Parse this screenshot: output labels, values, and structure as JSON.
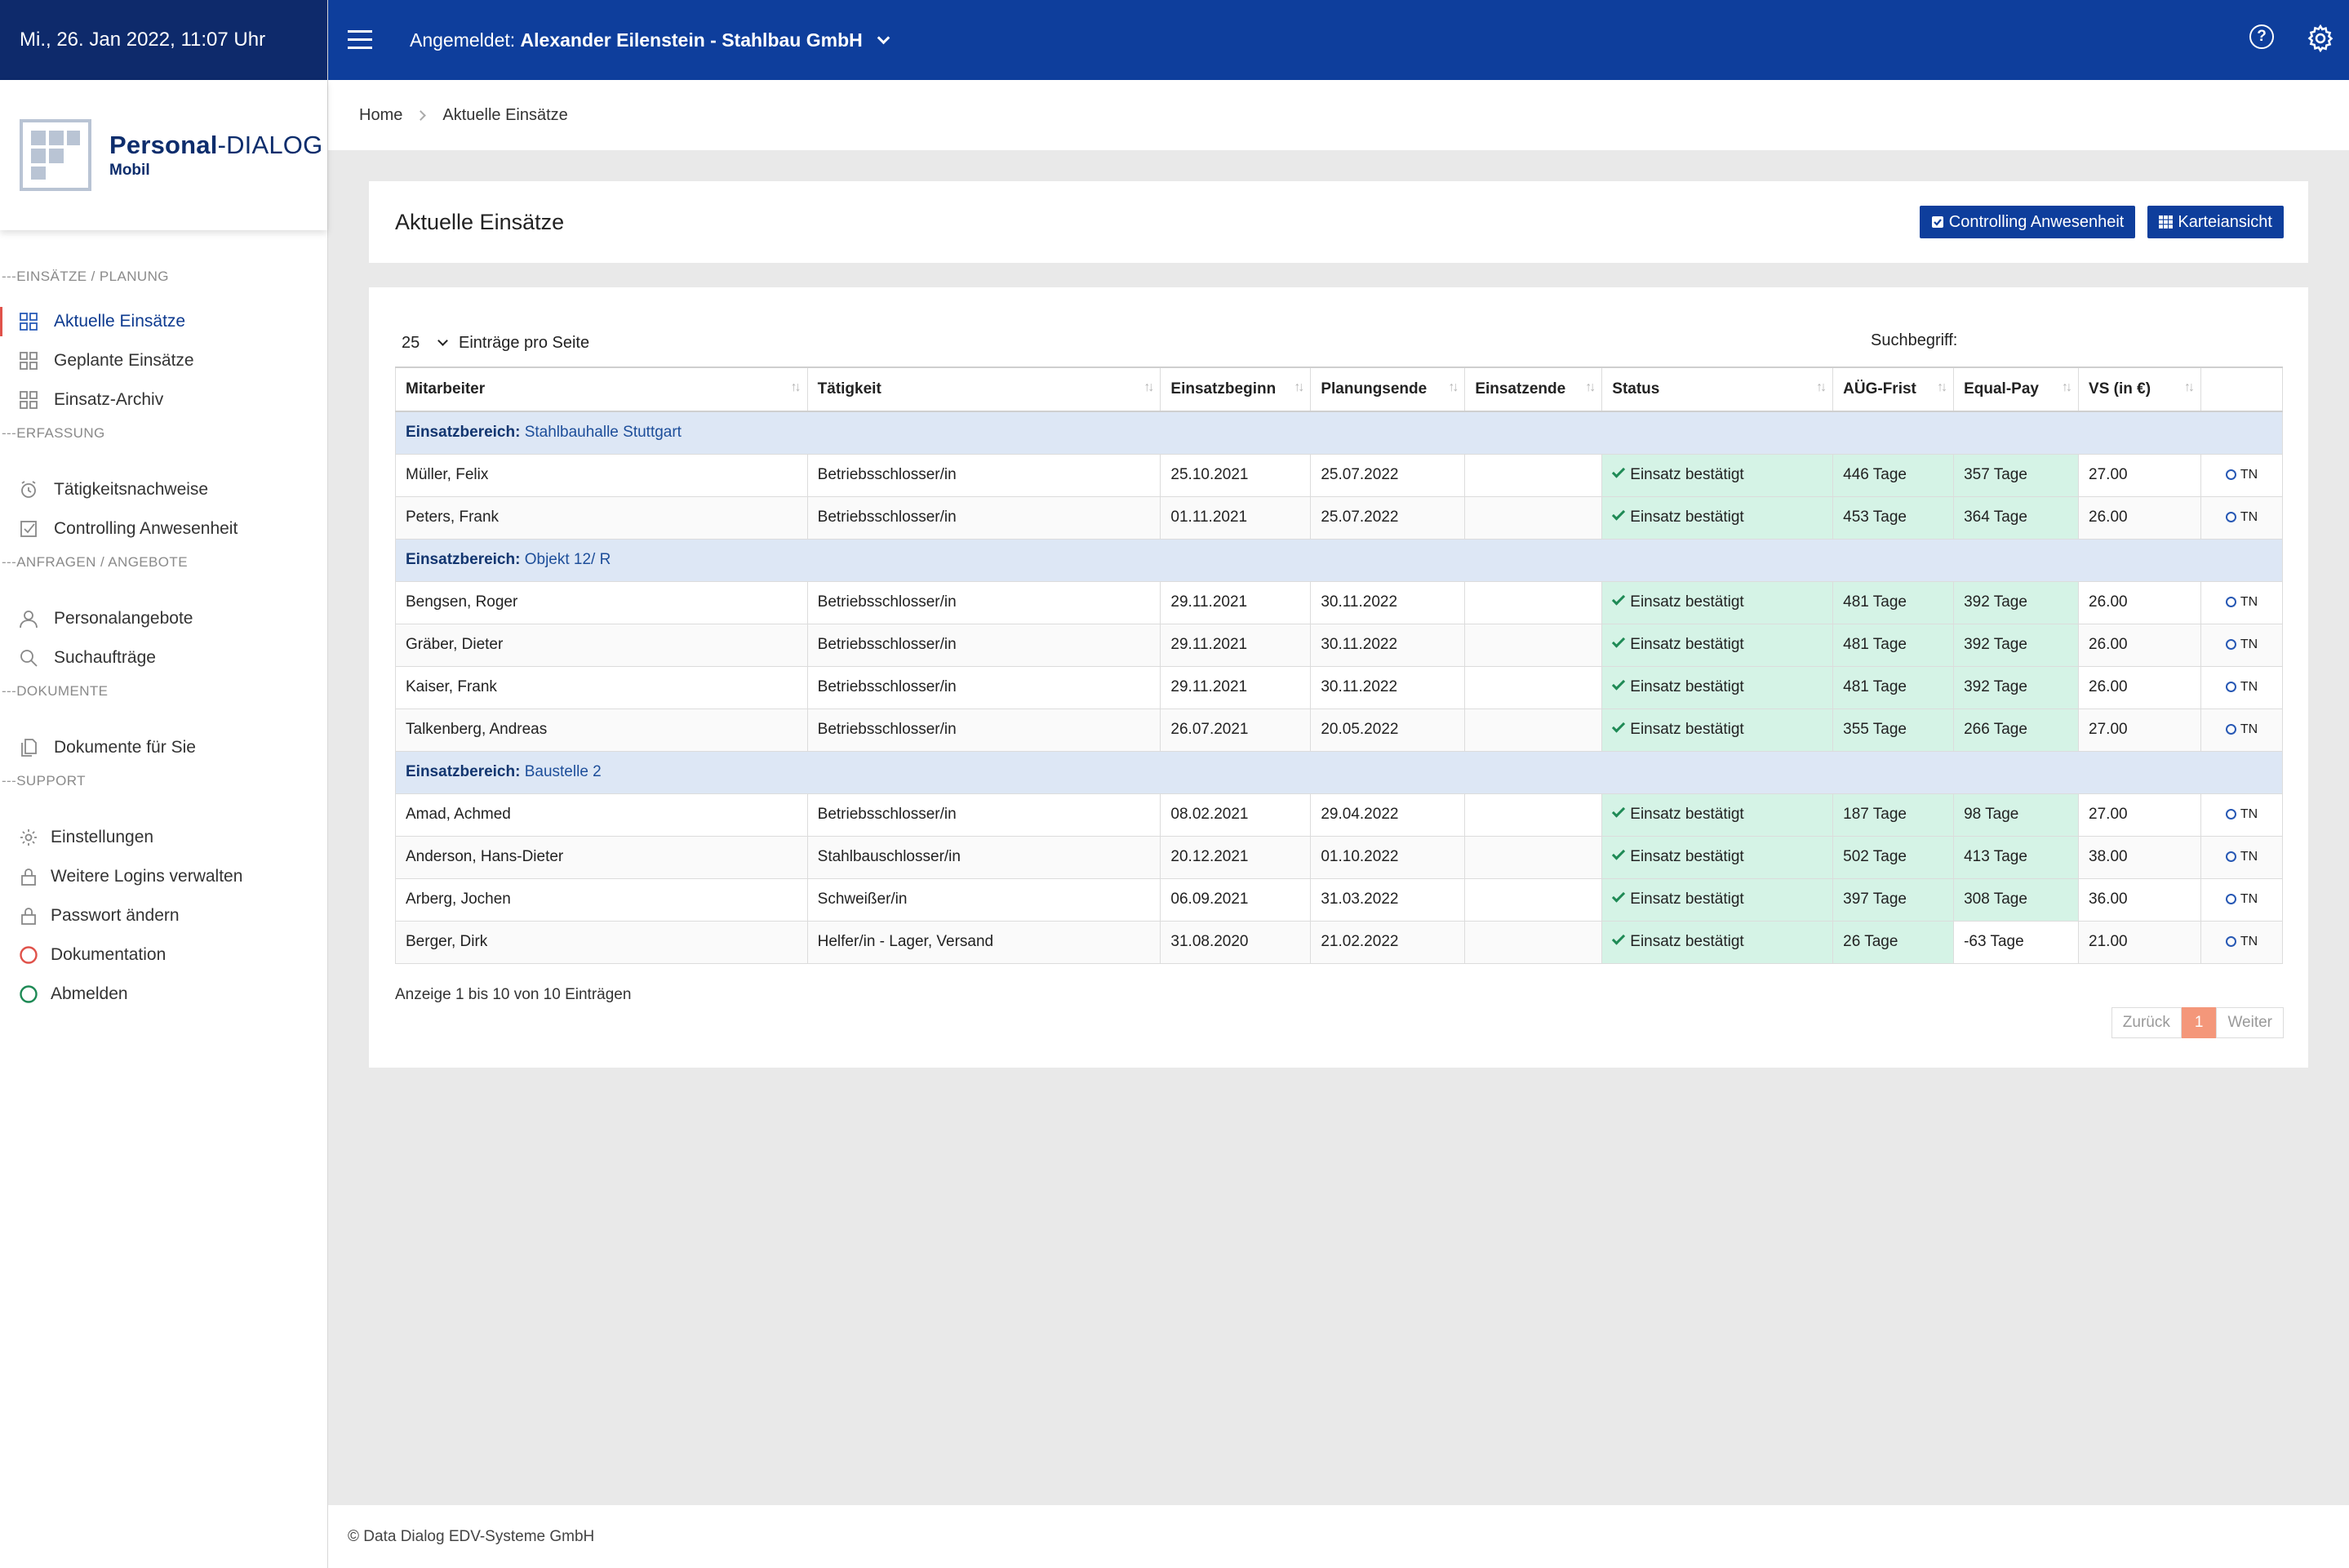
{
  "sidebar": {
    "datetime": "Mi., 26. Jan 2022, 11:07 Uhr",
    "logo_title_bold": "Personal",
    "logo_title_rest": "-DIALOG",
    "logo_sub": "Mobil",
    "sections": {
      "einsaetze": "EINSÄTZE / PLANUNG",
      "erfassung": "ERFASSUNG",
      "anfragen": "ANFRAGEN / ANGEBOTE",
      "dokumente": "DOKUMENTE",
      "support": "SUPPORT"
    },
    "items": {
      "aktuelle": "Aktuelle Einsätze",
      "geplante": "Geplante Einsätze",
      "archiv": "Einsatz-Archiv",
      "taetigkeit": "Tätigkeitsnachweise",
      "controlling": "Controlling Anwesenheit",
      "personal": "Personalangebote",
      "such": "Suchaufträge",
      "dokumente": "Dokumente für Sie",
      "einstellungen": "Einstellungen",
      "logins": "Weitere Logins verwalten",
      "passwort": "Passwort ändern",
      "doku": "Dokumentation",
      "abmelden": "Abmelden"
    }
  },
  "topbar": {
    "login_prefix": "Angemeldet:",
    "login_user": "Alexander Eilenstein - Stahlbau GmbH",
    "help_glyph": "?"
  },
  "breadcrumb": {
    "home": "Home",
    "current": "Aktuelle Einsätze"
  },
  "page": {
    "title": "Aktuelle Einsätze",
    "btn_controlling": "Controlling Anwesenheit",
    "btn_kartei": "Karteiansicht"
  },
  "table": {
    "page_size": "25",
    "page_size_label": "Einträge pro Seite",
    "search_label": "Suchbegriff:",
    "search_value": "",
    "headers": {
      "mitarbeiter": "Mitarbeiter",
      "taetigkeit": "Tätigkeit",
      "beginn": "Einsatzbeginn",
      "planende": "Planungsende",
      "ende": "Einsatzende",
      "status": "Status",
      "aug": "AÜG-Frist",
      "eqp": "Equal-Pay",
      "vs": "VS (in €)"
    },
    "group_label": "Einsatzbereich:",
    "status_text": "Einsatz bestätigt",
    "tn_label": "TN",
    "groups": [
      {
        "name": "Stahlbauhalle Stuttgart",
        "rows": [
          {
            "name": "Müller, Felix",
            "job": "Betriebsschlosser/in",
            "start": "25.10.2021",
            "plan": "25.07.2022",
            "end": "",
            "aug": "446 Tage",
            "eqp": "357 Tage",
            "vs": "27.00"
          },
          {
            "name": "Peters, Frank",
            "job": "Betriebsschlosser/in",
            "start": "01.11.2021",
            "plan": "25.07.2022",
            "end": "",
            "aug": "453 Tage",
            "eqp": "364 Tage",
            "vs": "26.00"
          }
        ]
      },
      {
        "name": "Objekt 12/ R",
        "rows": [
          {
            "name": "Bengsen, Roger",
            "job": "Betriebsschlosser/in",
            "start": "29.11.2021",
            "plan": "30.11.2022",
            "end": "",
            "aug": "481 Tage",
            "eqp": "392 Tage",
            "vs": "26.00"
          },
          {
            "name": "Gräber, Dieter",
            "job": "Betriebsschlosser/in",
            "start": "29.11.2021",
            "plan": "30.11.2022",
            "end": "",
            "aug": "481 Tage",
            "eqp": "392 Tage",
            "vs": "26.00"
          },
          {
            "name": "Kaiser, Frank",
            "job": "Betriebsschlosser/in",
            "start": "29.11.2021",
            "plan": "30.11.2022",
            "end": "",
            "aug": "481 Tage",
            "eqp": "392 Tage",
            "vs": "26.00"
          },
          {
            "name": "Talkenberg, Andreas",
            "job": "Betriebsschlosser/in",
            "start": "26.07.2021",
            "plan": "20.05.2022",
            "end": "",
            "aug": "355 Tage",
            "eqp": "266 Tage",
            "vs": "27.00"
          }
        ]
      },
      {
        "name": "Baustelle 2",
        "rows": [
          {
            "name": "Amad, Achmed",
            "job": "Betriebsschlosser/in",
            "start": "08.02.2021",
            "plan": "29.04.2022",
            "end": "",
            "aug": "187 Tage",
            "eqp": "98 Tage",
            "vs": "27.00"
          },
          {
            "name": "Anderson, Hans-Dieter",
            "job": "Stahlbauschlosser/in",
            "start": "20.12.2021",
            "plan": "01.10.2022",
            "end": "",
            "aug": "502 Tage",
            "eqp": "413 Tage",
            "vs": "38.00"
          },
          {
            "name": "Arberg, Jochen",
            "job": "Schweißer/in",
            "start": "06.09.2021",
            "plan": "31.03.2022",
            "end": "",
            "aug": "397 Tage",
            "eqp": "308 Tage",
            "vs": "36.00"
          },
          {
            "name": "Berger, Dirk",
            "job": "Helfer/in - Lager, Versand",
            "start": "31.08.2020",
            "plan": "21.02.2022",
            "end": "",
            "aug": "26 Tage",
            "eqp": "-63 Tage",
            "eqp_negative": true,
            "vs": "21.00"
          }
        ]
      }
    ],
    "info": "Anzeige 1 bis 10 von 10 Einträgen",
    "pager": {
      "prev": "Zurück",
      "current": "1",
      "next": "Weiter"
    }
  },
  "footer": {
    "text": "© Data Dialog EDV-Systeme GmbH"
  },
  "colors": {
    "topbar": "#0e3e9c",
    "datebar": "#0e2a6b",
    "group_bg": "#dde7f5",
    "status_bg": "#d5f3e6",
    "pager_active": "#f4977a"
  }
}
